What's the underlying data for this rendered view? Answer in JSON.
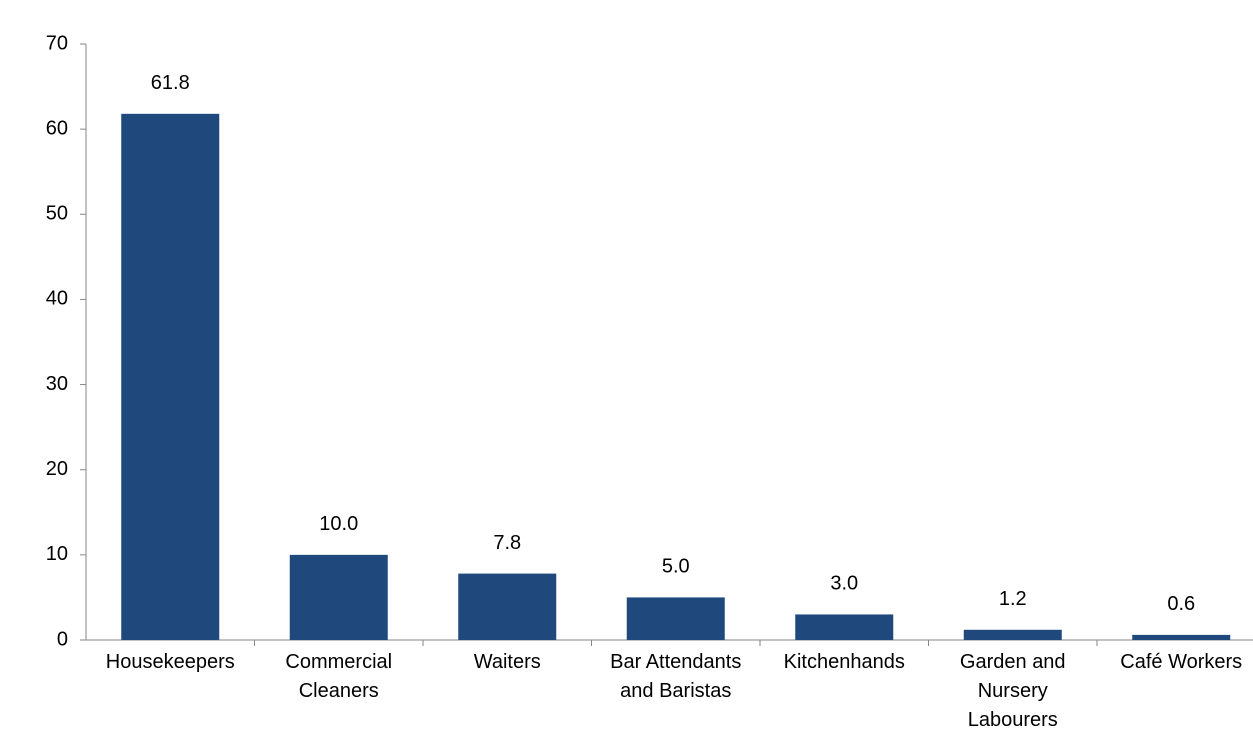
{
  "chart_data": {
    "type": "bar",
    "categories": [
      "Housekeepers",
      "Commercial Cleaners",
      "Waiters",
      "Bar Attendants and Baristas",
      "Kitchenhands",
      "Garden and Nursery Labourers",
      "Café Workers"
    ],
    "values": [
      61.8,
      10.0,
      7.8,
      5.0,
      3.0,
      1.2,
      0.6
    ],
    "value_labels": [
      "61.8",
      "10.0",
      "7.8",
      "5.0",
      "3.0",
      "1.2",
      "0.6"
    ],
    "color": "#1f497d",
    "ylim": [
      0,
      70
    ],
    "yticks": [
      0,
      10,
      20,
      30,
      40,
      50,
      60,
      70
    ],
    "grid": false
  }
}
